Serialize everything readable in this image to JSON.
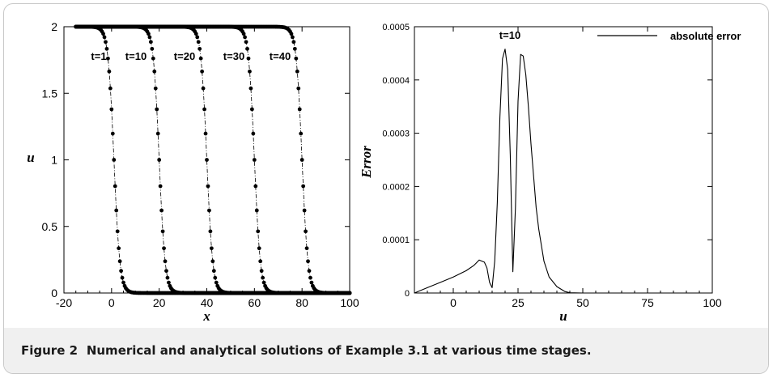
{
  "chart_data": [
    {
      "type": "line",
      "xlabel": "x",
      "ylabel": "u",
      "xlim": [
        -20,
        100
      ],
      "ylim": [
        0,
        2
      ],
      "xticks": [
        -20,
        0,
        20,
        40,
        60,
        80,
        100
      ],
      "yticks": [
        0,
        0.5,
        1,
        1.5,
        2
      ],
      "xtick_labels": [
        "-20",
        "0",
        "20",
        "40",
        "60",
        "80",
        "100"
      ],
      "ytick_labels": [
        "0",
        "0.5",
        "1",
        "1.5",
        "2"
      ],
      "series": [
        {
          "name": "t=1",
          "center": 1,
          "width": 2.5,
          "marker": "dot",
          "line": "dash-dot"
        },
        {
          "name": "t=10",
          "center": 20,
          "width": 2.5,
          "marker": "dot",
          "line": "dash-dot"
        },
        {
          "name": "t=20",
          "center": 40,
          "width": 2.5,
          "marker": "dot",
          "line": "dash-dot"
        },
        {
          "name": "t=30",
          "center": 60,
          "width": 2.5,
          "marker": "dot",
          "line": "dash-dot"
        },
        {
          "name": "t=40",
          "center": 80,
          "width": 2.5,
          "marker": "dot",
          "line": "dash-dot"
        }
      ],
      "x_start": -15,
      "x_end": 100,
      "annotations": [
        "t=1",
        "t=10",
        "t=20",
        "t=30",
        "t=40"
      ]
    },
    {
      "type": "line",
      "xlabel": "u",
      "ylabel": "Error",
      "xlim": [
        -15,
        100
      ],
      "ylim": [
        0,
        0.0005
      ],
      "xticks": [
        0,
        25,
        50,
        75,
        100
      ],
      "yticks": [
        0,
        0.0001,
        0.0002,
        0.0003,
        0.0004,
        0.0005
      ],
      "xtick_labels": [
        "0",
        "25",
        "50",
        "75",
        "100"
      ],
      "ytick_labels": [
        "0",
        "0.0001",
        "0.0002",
        "0.0003",
        "0.0004",
        "0.0005"
      ],
      "series": [
        {
          "name": "absolute error",
          "x": [
            -15,
            -10,
            -5,
            0,
            5,
            8,
            10,
            12,
            13,
            14,
            15,
            16,
            17,
            18,
            19,
            20,
            21,
            22,
            23,
            24,
            25,
            26,
            27,
            28,
            29,
            30,
            31,
            32,
            33,
            35,
            37,
            40,
            43,
            45,
            50,
            60,
            75,
            100
          ],
          "y": [
            0.0,
            1e-05,
            2e-05,
            3e-05,
            4.2e-05,
            5.2e-05,
            6.2e-05,
            5.8e-05,
            4.7e-05,
            2e-05,
            1e-05,
            6e-05,
            0.00017,
            0.00033,
            0.00044,
            0.000458,
            0.00042,
            0.00026,
            4e-05,
            0.00016,
            0.00036,
            0.000448,
            0.000445,
            0.00041,
            0.00035,
            0.00028,
            0.00022,
            0.00016,
            0.00012,
            6e-05,
            3e-05,
            1.2e-05,
            3e-06,
            5e-07,
            0.0,
            0.0,
            0.0,
            0.0
          ]
        }
      ],
      "annotations": [
        "t=10"
      ],
      "legend": {
        "label": "absolute error",
        "position": "top-right"
      }
    }
  ],
  "caption": {
    "label": "Figure 2",
    "text": "Numerical and analytical solutions of Example 3.1 at various time stages."
  }
}
